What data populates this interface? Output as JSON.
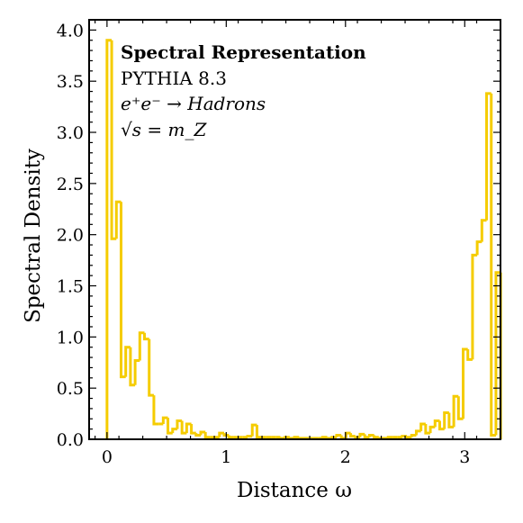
{
  "chart_data": {
    "type": "histogram",
    "xlabel": "Distance ω",
    "ylabel": "Spectral Density",
    "xlim": [
      -0.15,
      3.3
    ],
    "ylim": [
      0.0,
      4.1
    ],
    "xticks": [
      0,
      1,
      2,
      3
    ],
    "yticks": [
      0.0,
      0.5,
      1.0,
      1.5,
      2.0,
      2.5,
      3.0,
      3.5,
      4.0
    ],
    "x_tick_labels": [
      "0",
      "1",
      "2",
      "3"
    ],
    "y_tick_labels": [
      "0.0",
      "0.5",
      "1.0",
      "1.5",
      "2.0",
      "2.5",
      "3.0",
      "3.5",
      "4.0"
    ],
    "bin_start": 0.0,
    "bin_width": 0.0393,
    "color": "#f5cc00",
    "grid": false,
    "annotation": {
      "line1": "Spectral Representation",
      "line2": "PYTHIA 8.3",
      "line3": "e⁺e⁻ → Hadrons",
      "line4": "√s = m_Z"
    },
    "values": [
      3.9,
      1.96,
      2.32,
      0.61,
      0.9,
      0.53,
      0.77,
      1.04,
      0.98,
      0.43,
      0.15,
      0.15,
      0.21,
      0.06,
      0.1,
      0.18,
      0.06,
      0.15,
      0.06,
      0.04,
      0.07,
      0.02,
      0.02,
      0.02,
      0.06,
      0.04,
      0.02,
      0.02,
      0.02,
      0.02,
      0.03,
      0.14,
      0.02,
      0.02,
      0.02,
      0.02,
      0.02,
      0.01,
      0.02,
      0.01,
      0.02,
      0.01,
      0.01,
      0.01,
      0.01,
      0.01,
      0.02,
      0.01,
      0.02,
      0.04,
      0.01,
      0.06,
      0.03,
      0.02,
      0.05,
      0.02,
      0.04,
      0.02,
      0.01,
      0.01,
      0.02,
      0.02,
      0.02,
      0.03,
      0.02,
      0.04,
      0.08,
      0.15,
      0.06,
      0.12,
      0.18,
      0.1,
      0.26,
      0.12,
      0.42,
      0.2,
      0.88,
      0.78,
      1.8,
      1.93,
      2.14,
      3.38,
      0.04,
      1.63
    ]
  }
}
